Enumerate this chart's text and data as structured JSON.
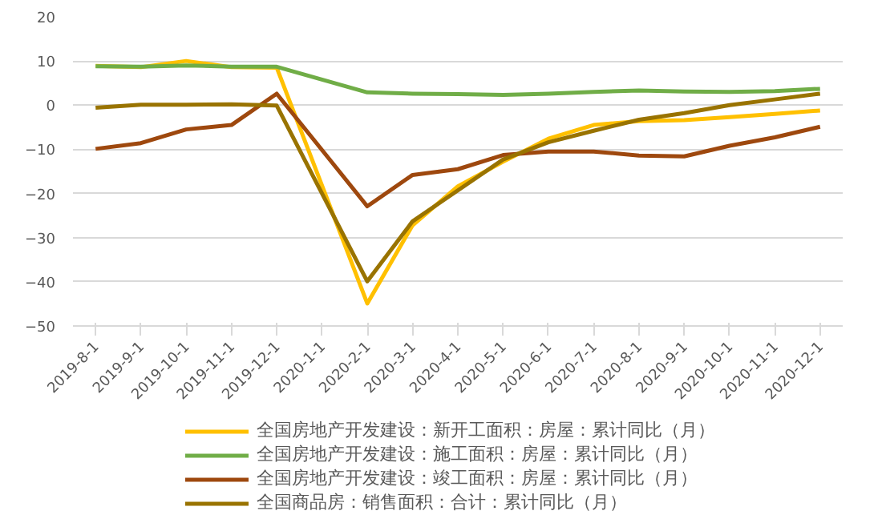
{
  "chart_data": {
    "type": "line",
    "categories": [
      "2019-8-1",
      "2019-9-1",
      "2019-10-1",
      "2019-11-1",
      "2019-12-1",
      "2020-1-1",
      "2020-2-1",
      "2020-3-1",
      "2020-4-1",
      "2020-5-1",
      "2020-6-1",
      "2020-7-1",
      "2020-8-1",
      "2020-9-1",
      "2020-10-1",
      "2020-11-1",
      "2020-12-1"
    ],
    "series": [
      {
        "name": "全国房地产开发建设：新开工面积：房屋：累计同比（月）",
        "color": "#ffc000",
        "values": [
          8.9,
          8.6,
          10.0,
          8.6,
          8.5,
          null,
          -44.9,
          -27.2,
          -18.4,
          -12.8,
          -7.6,
          -4.5,
          -3.6,
          -3.4,
          -2.7,
          -2.0,
          -1.2
        ]
      },
      {
        "name": "全国房地产开发建设：施工面积：房屋：累计同比（月）",
        "color": "#70ad47",
        "values": [
          8.8,
          8.7,
          9.0,
          8.7,
          8.7,
          null,
          2.9,
          2.6,
          2.5,
          2.3,
          2.6,
          3.0,
          3.3,
          3.1,
          3.0,
          3.2,
          3.7
        ]
      },
      {
        "name": "全国房地产开发建设：竣工面积：房屋：累计同比（月）",
        "color": "#9e480e",
        "values": [
          -9.9,
          -8.6,
          -5.5,
          -4.5,
          2.6,
          null,
          -22.9,
          -15.8,
          -14.5,
          -11.3,
          -10.5,
          -10.5,
          -11.4,
          -11.6,
          -9.2,
          -7.3,
          -4.9
        ]
      },
      {
        "name": "全国商品房：销售面积：合计：累计同比（月）",
        "color": "#997300",
        "values": [
          -0.6,
          0.1,
          0.1,
          0.2,
          -0.1,
          null,
          -39.9,
          -26.3,
          -19.3,
          -12.3,
          -8.4,
          -5.8,
          -3.3,
          -1.8,
          0.0,
          1.3,
          2.6
        ]
      }
    ],
    "ylim": [
      -50,
      20
    ],
    "yticks": [
      -50,
      -40,
      -30,
      -20,
      -10,
      0,
      10,
      20
    ],
    "grid": "y",
    "legend": "bottom",
    "line_style": "solid",
    "marker": "none"
  }
}
